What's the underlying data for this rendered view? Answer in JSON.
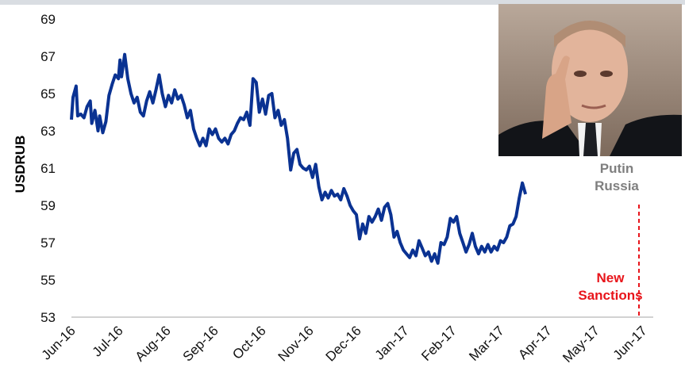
{
  "chart_data": {
    "type": "line",
    "ylabel": "USDRUB",
    "ylim": [
      53,
      69
    ],
    "yticks": [
      53,
      55,
      57,
      59,
      61,
      63,
      65,
      67,
      69
    ],
    "xticks": [
      "Jun-16",
      "Jul-16",
      "Aug-16",
      "Sep-16",
      "Oct-16",
      "Nov-16",
      "Dec-16",
      "Jan-17",
      "Feb-17",
      "Mar-17",
      "Apr-17",
      "May-17",
      "Jun-17"
    ],
    "xlim": [
      "2016-06-01",
      "2017-06-01"
    ],
    "series": [
      {
        "color": "#0a3292",
        "points": [
          [
            "2016-06-01",
            63.6
          ],
          [
            "2016-06-02",
            64.8
          ],
          [
            "2016-06-04",
            65.4
          ],
          [
            "2016-06-05",
            63.8
          ],
          [
            "2016-06-07",
            63.9
          ],
          [
            "2016-06-09",
            63.7
          ],
          [
            "2016-06-11",
            64.3
          ],
          [
            "2016-06-13",
            64.6
          ],
          [
            "2016-06-14",
            63.4
          ],
          [
            "2016-06-16",
            64.1
          ],
          [
            "2016-06-18",
            63.0
          ],
          [
            "2016-06-19",
            63.8
          ],
          [
            "2016-06-21",
            62.9
          ],
          [
            "2016-06-23",
            63.5
          ],
          [
            "2016-06-25",
            64.9
          ],
          [
            "2016-06-27",
            65.5
          ],
          [
            "2016-06-29",
            66.0
          ],
          [
            "2016-07-01",
            65.8
          ],
          [
            "2016-07-02",
            66.8
          ],
          [
            "2016-07-03",
            65.9
          ],
          [
            "2016-07-05",
            67.1
          ],
          [
            "2016-07-07",
            65.8
          ],
          [
            "2016-07-09",
            65.0
          ],
          [
            "2016-07-11",
            64.5
          ],
          [
            "2016-07-13",
            64.8
          ],
          [
            "2016-07-15",
            64.0
          ],
          [
            "2016-07-17",
            63.8
          ],
          [
            "2016-07-19",
            64.6
          ],
          [
            "2016-07-21",
            65.1
          ],
          [
            "2016-07-23",
            64.5
          ],
          [
            "2016-07-25",
            65.2
          ],
          [
            "2016-07-27",
            66.0
          ],
          [
            "2016-07-29",
            65.0
          ],
          [
            "2016-07-31",
            64.3
          ],
          [
            "2016-08-02",
            64.9
          ],
          [
            "2016-08-04",
            64.5
          ],
          [
            "2016-08-06",
            65.2
          ],
          [
            "2016-08-08",
            64.7
          ],
          [
            "2016-08-10",
            64.9
          ],
          [
            "2016-08-12",
            64.4
          ],
          [
            "2016-08-14",
            63.7
          ],
          [
            "2016-08-16",
            64.1
          ],
          [
            "2016-08-18",
            63.1
          ],
          [
            "2016-08-20",
            62.6
          ],
          [
            "2016-08-22",
            62.2
          ],
          [
            "2016-08-24",
            62.6
          ],
          [
            "2016-08-26",
            62.2
          ],
          [
            "2016-08-28",
            63.1
          ],
          [
            "2016-08-30",
            62.8
          ],
          [
            "2016-09-01",
            63.1
          ],
          [
            "2016-09-03",
            62.6
          ],
          [
            "2016-09-05",
            62.4
          ],
          [
            "2016-09-07",
            62.6
          ],
          [
            "2016-09-09",
            62.3
          ],
          [
            "2016-09-11",
            62.8
          ],
          [
            "2016-09-13",
            63.0
          ],
          [
            "2016-09-15",
            63.4
          ],
          [
            "2016-09-17",
            63.7
          ],
          [
            "2016-09-19",
            63.6
          ],
          [
            "2016-09-21",
            64.0
          ],
          [
            "2016-09-23",
            63.3
          ],
          [
            "2016-09-25",
            65.8
          ],
          [
            "2016-09-27",
            65.6
          ],
          [
            "2016-09-29",
            64.0
          ],
          [
            "2016-10-01",
            64.7
          ],
          [
            "2016-10-03",
            63.9
          ],
          [
            "2016-10-05",
            64.9
          ],
          [
            "2016-10-07",
            65.0
          ],
          [
            "2016-10-09",
            63.7
          ],
          [
            "2016-10-11",
            64.1
          ],
          [
            "2016-10-13",
            63.3
          ],
          [
            "2016-10-15",
            63.6
          ],
          [
            "2016-10-17",
            62.6
          ],
          [
            "2016-10-19",
            60.9
          ],
          [
            "2016-10-21",
            61.8
          ],
          [
            "2016-10-23",
            62.0
          ],
          [
            "2016-10-25",
            61.2
          ],
          [
            "2016-10-27",
            61.0
          ],
          [
            "2016-10-29",
            60.9
          ],
          [
            "2016-10-31",
            61.1
          ],
          [
            "2016-11-02",
            60.5
          ],
          [
            "2016-11-04",
            61.2
          ],
          [
            "2016-11-06",
            60.0
          ],
          [
            "2016-11-08",
            59.3
          ],
          [
            "2016-11-10",
            59.7
          ],
          [
            "2016-11-12",
            59.4
          ],
          [
            "2016-11-14",
            59.8
          ],
          [
            "2016-11-16",
            59.5
          ],
          [
            "2016-11-18",
            59.6
          ],
          [
            "2016-11-20",
            59.3
          ],
          [
            "2016-11-22",
            59.9
          ],
          [
            "2016-11-24",
            59.5
          ],
          [
            "2016-11-26",
            59.0
          ],
          [
            "2016-11-28",
            58.7
          ],
          [
            "2016-11-30",
            58.5
          ],
          [
            "2016-12-02",
            57.2
          ],
          [
            "2016-12-04",
            58.0
          ],
          [
            "2016-12-06",
            57.5
          ],
          [
            "2016-12-08",
            58.4
          ],
          [
            "2016-12-10",
            58.1
          ],
          [
            "2016-12-12",
            58.4
          ],
          [
            "2016-12-14",
            58.8
          ],
          [
            "2016-12-16",
            58.2
          ],
          [
            "2016-12-18",
            58.9
          ],
          [
            "2016-12-20",
            59.1
          ],
          [
            "2016-12-22",
            58.5
          ],
          [
            "2016-12-24",
            57.3
          ],
          [
            "2016-12-26",
            57.6
          ],
          [
            "2016-12-28",
            57.0
          ],
          [
            "2016-12-30",
            56.6
          ],
          [
            "2017-01-01",
            56.4
          ],
          [
            "2017-01-03",
            56.2
          ],
          [
            "2017-01-05",
            56.6
          ],
          [
            "2017-01-07",
            56.3
          ],
          [
            "2017-01-09",
            57.1
          ],
          [
            "2017-01-11",
            56.7
          ],
          [
            "2017-01-13",
            56.3
          ],
          [
            "2017-01-15",
            56.5
          ],
          [
            "2017-01-17",
            56.0
          ],
          [
            "2017-01-19",
            56.4
          ],
          [
            "2017-01-21",
            55.9
          ],
          [
            "2017-01-23",
            57.0
          ],
          [
            "2017-01-25",
            56.9
          ],
          [
            "2017-01-27",
            57.3
          ],
          [
            "2017-01-29",
            58.3
          ],
          [
            "2017-01-31",
            58.1
          ],
          [
            "2017-02-02",
            58.4
          ],
          [
            "2017-02-04",
            57.5
          ],
          [
            "2017-02-06",
            57.0
          ],
          [
            "2017-02-08",
            56.5
          ],
          [
            "2017-02-10",
            56.9
          ],
          [
            "2017-02-12",
            57.5
          ],
          [
            "2017-02-14",
            56.8
          ],
          [
            "2017-02-16",
            56.4
          ],
          [
            "2017-02-18",
            56.8
          ],
          [
            "2017-02-20",
            56.5
          ],
          [
            "2017-02-22",
            56.9
          ],
          [
            "2017-02-24",
            56.5
          ],
          [
            "2017-02-26",
            56.8
          ],
          [
            "2017-02-28",
            56.6
          ],
          [
            "2017-03-02",
            57.1
          ],
          [
            "2017-03-04",
            57.0
          ],
          [
            "2017-03-06",
            57.3
          ],
          [
            "2017-03-08",
            57.9
          ],
          [
            "2017-03-10",
            58.0
          ],
          [
            "2017-03-12",
            58.4
          ],
          [
            "2017-03-14",
            59.4
          ],
          [
            "2017-03-16",
            60.2
          ],
          [
            "2017-03-18",
            59.6
          ]
        ]
      }
    ],
    "annotations": [
      {
        "text_lines": [
          "Putin",
          "Russia"
        ],
        "color": "#7f7f7f"
      },
      {
        "text_lines": [
          "New",
          "Sanctions"
        ],
        "color": "#e8151b",
        "marker": "vertical-dashed-line"
      }
    ],
    "grid": false
  }
}
